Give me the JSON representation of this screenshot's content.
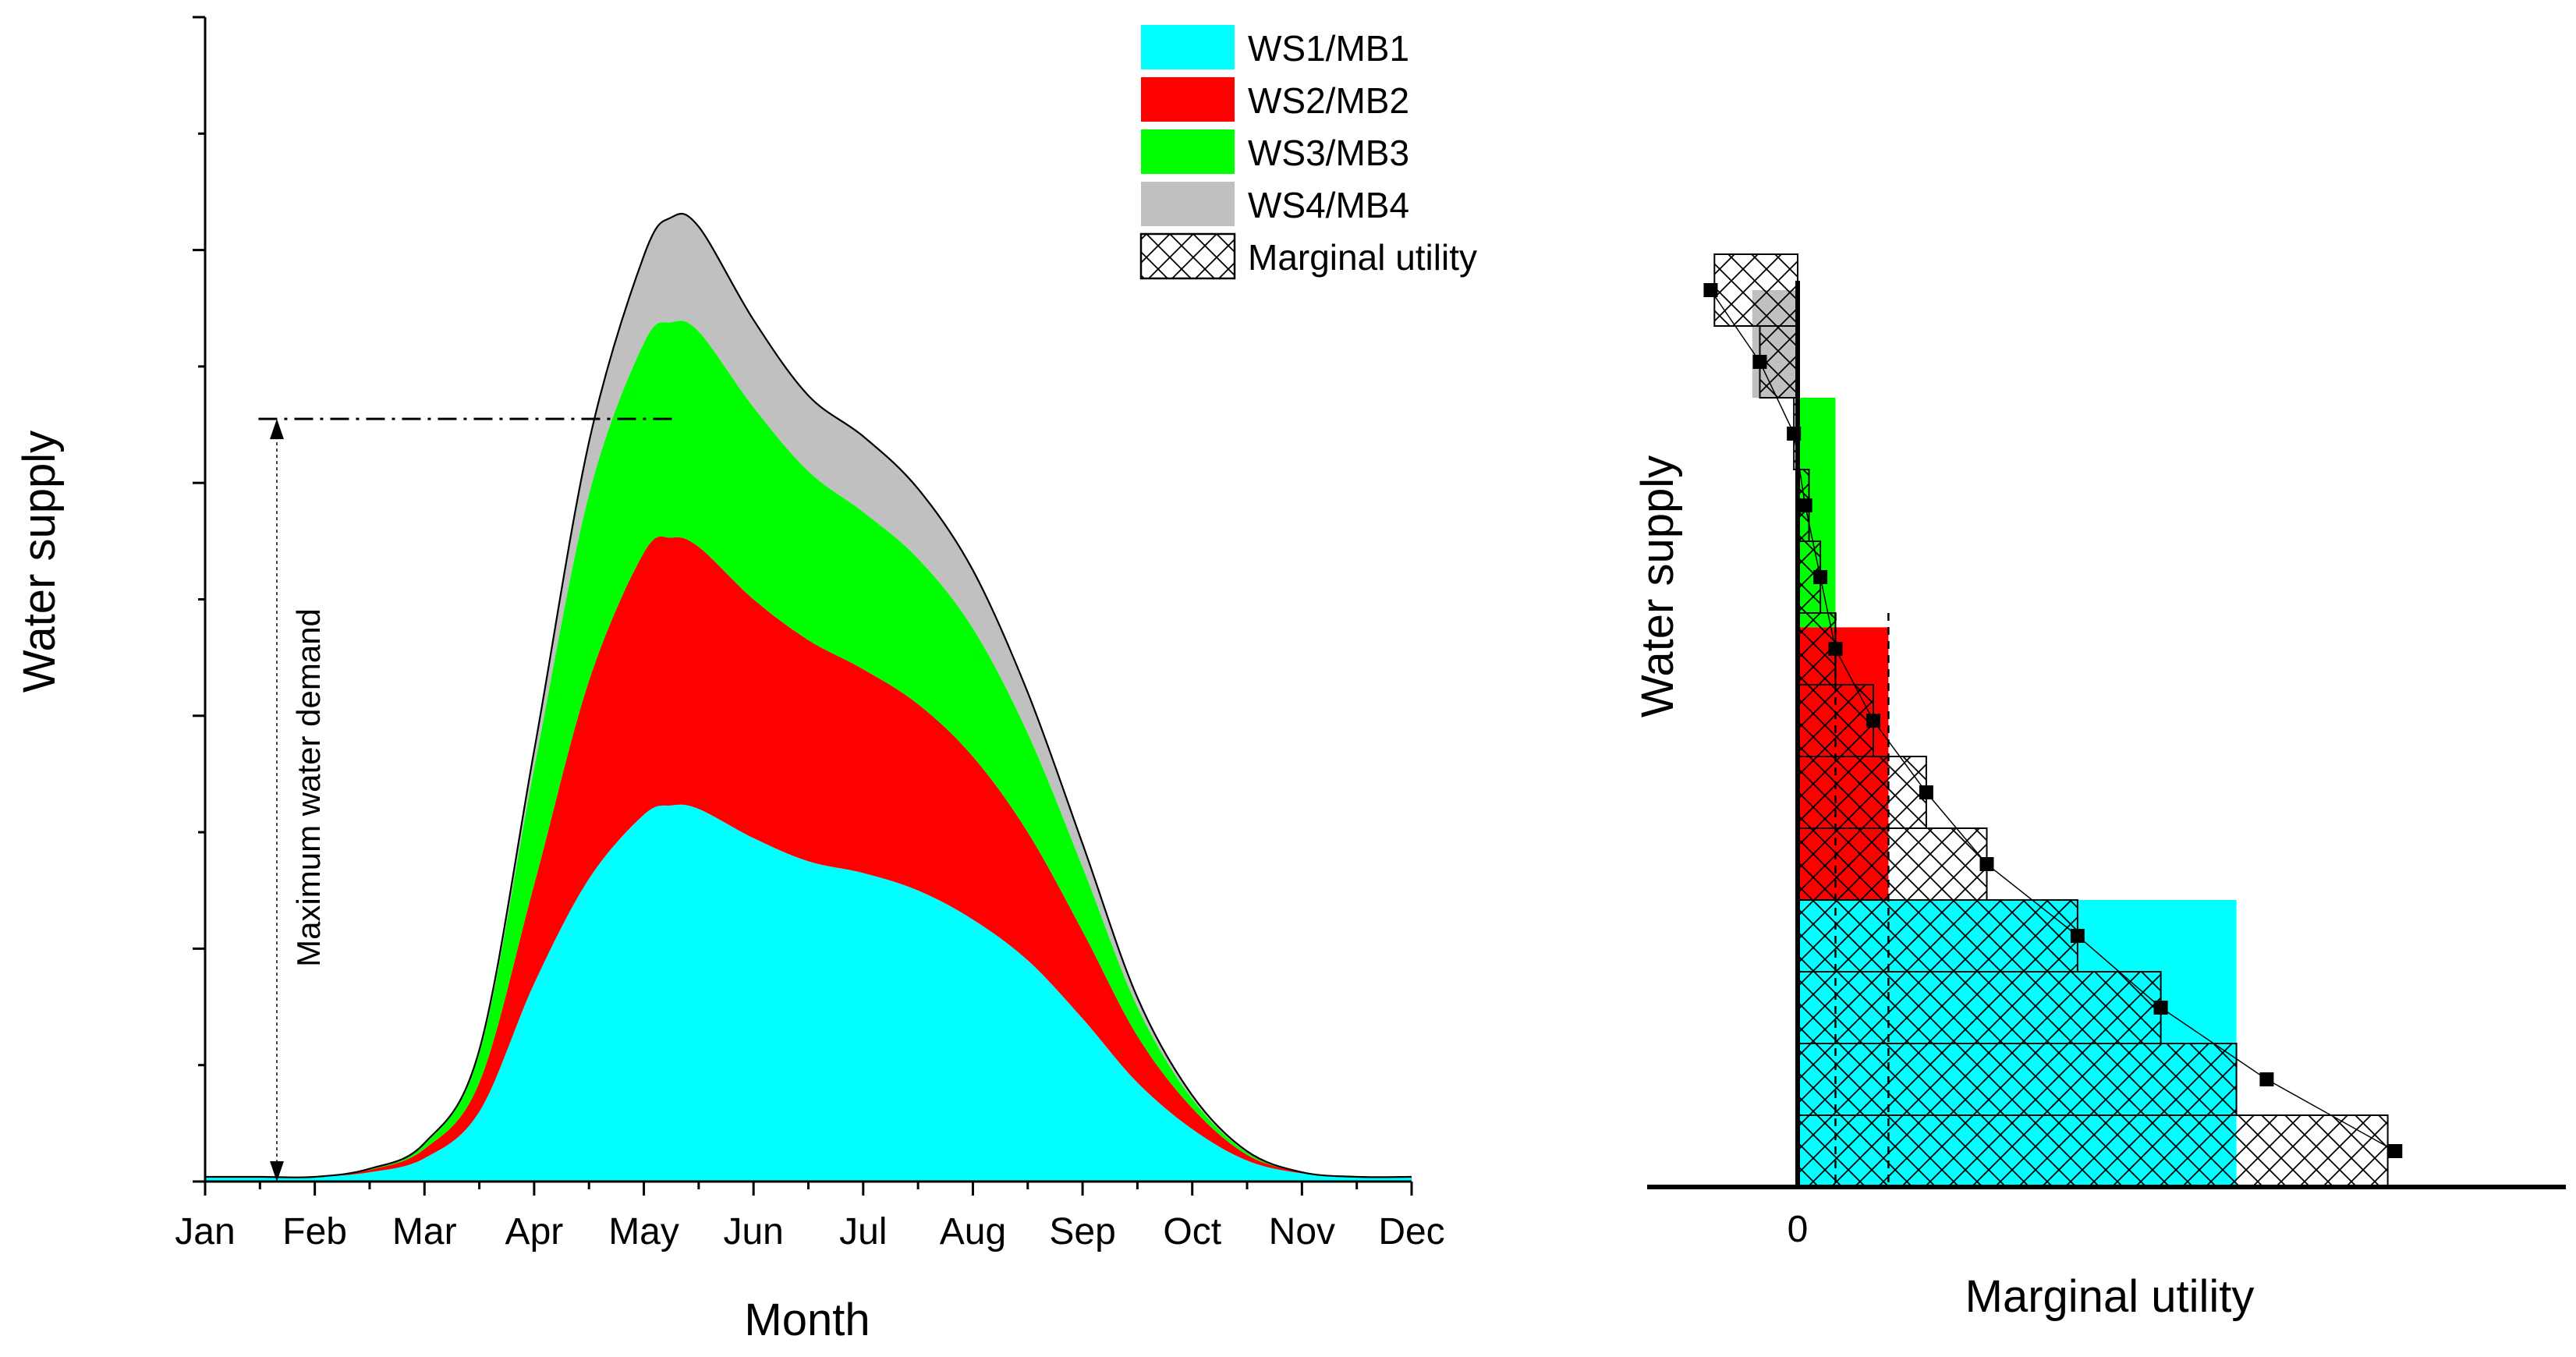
{
  "chart_data": [
    {
      "type": "area",
      "stacked": true,
      "title": "",
      "xlabel": "Month",
      "ylabel": "Water supply",
      "x": [
        0,
        0.5,
        1,
        1.5,
        2,
        2.5,
        3,
        3.5,
        4,
        4.25,
        4.5,
        5,
        5.5,
        6,
        6.5,
        7,
        7.5,
        8,
        8.5,
        9,
        9.5,
        10,
        10.5,
        11
      ],
      "xticks": [
        "Jan",
        "Feb",
        "Mar",
        "Apr",
        "May",
        "Jun",
        "Jul",
        "Aug",
        "Sep",
        "Oct",
        "Nov",
        "Dec"
      ],
      "xlim": [
        0,
        11
      ],
      "ylim": [
        0,
        100
      ],
      "series": [
        {
          "name": "WS1/MB1",
          "color": "#00ffff",
          "values": [
            0.4,
            0.4,
            0.4,
            0.8,
            2.0,
            6.0,
            17.0,
            26.0,
            31.5,
            32.3,
            32.0,
            29.5,
            27.5,
            26.5,
            25.0,
            22.5,
            19.0,
            14.0,
            8.5,
            4.5,
            1.8,
            0.7,
            0.4,
            0.4
          ]
        },
        {
          "name": "WS2/MB2",
          "color": "#ff0000",
          "values": [
            0,
            0,
            0,
            0.2,
            0.8,
            2.5,
            8.5,
            17.0,
            22.5,
            23.0,
            22.5,
            20.5,
            19.0,
            17.5,
            16.0,
            14.0,
            11.0,
            7.5,
            4.0,
            1.8,
            0.5,
            0.1,
            0,
            0
          ]
        },
        {
          "name": "WS3/MB3",
          "color": "#00ff00",
          "values": [
            0,
            0,
            0,
            0.1,
            0.4,
            2.5,
            10.0,
            16.0,
            18.0,
            18.5,
            18.5,
            16.5,
            14.5,
            13.5,
            12.5,
            11.0,
            8.5,
            5.5,
            2.5,
            0.8,
            0.2,
            0,
            0,
            0
          ]
        },
        {
          "name": "WS4/MB4",
          "color": "#c0c0c0",
          "values": [
            0,
            0,
            0,
            0,
            0.1,
            0.3,
            1.5,
            4.5,
            7.5,
            9.0,
            9.0,
            7.5,
            6.5,
            6.5,
            6.0,
            5.0,
            3.5,
            2.0,
            0.8,
            0.3,
            0.1,
            0,
            0,
            0
          ]
        }
      ],
      "annotations": [
        {
          "text": "Maximum water demand",
          "value": 65.5,
          "x_start": 0.7,
          "x_end": 4.3
        }
      ],
      "legend": {
        "position": "top-right",
        "entries": [
          {
            "label": "WS1/MB1",
            "color": "#00ffff",
            "pattern": "solid"
          },
          {
            "label": "WS2/MB2",
            "color": "#ff0000",
            "pattern": "solid"
          },
          {
            "label": "WS3/MB3",
            "color": "#00ff00",
            "pattern": "solid"
          },
          {
            "label": "WS4/MB4",
            "color": "#c0c0c0",
            "pattern": "solid"
          },
          {
            "label": "Marginal utility",
            "color": "#ffffff",
            "pattern": "crosshatch"
          }
        ]
      }
    },
    {
      "type": "bar",
      "orientation": "horizontal",
      "title": "",
      "xlabel": "Marginal utility",
      "ylabel": "Water supply",
      "xticks": [
        "0"
      ],
      "xlim": [
        -1.0,
        8.5
      ],
      "ylim": [
        0,
        16.5
      ],
      "supply_blocks": [
        {
          "name": "WS1/MB1",
          "color": "#00ffff",
          "y_from": 0,
          "y_to": 4,
          "utility": 5.8
        },
        {
          "name": "WS2/MB2",
          "color": "#ff0000",
          "y_from": 4,
          "y_to": 7.8,
          "utility": 1.2
        },
        {
          "name": "WS3/MB3",
          "color": "#00ff00",
          "y_from": 7.8,
          "y_to": 11,
          "utility": 0.5
        },
        {
          "name": "WS4/MB4",
          "color": "#c0c0c0",
          "y_from": 11,
          "y_to": 12.5,
          "utility": -0.6
        }
      ],
      "marginal_utility_steps": [
        {
          "y_from": 0,
          "y_to": 1,
          "utility": 7.8
        },
        {
          "y_from": 1,
          "y_to": 2,
          "utility": 5.8
        },
        {
          "y_from": 2,
          "y_to": 3,
          "utility": 4.8
        },
        {
          "y_from": 3,
          "y_to": 4,
          "utility": 3.7
        },
        {
          "y_from": 4,
          "y_to": 5,
          "utility": 2.5
        },
        {
          "y_from": 5,
          "y_to": 6,
          "utility": 1.7
        },
        {
          "y_from": 6,
          "y_to": 7,
          "utility": 1.0
        },
        {
          "y_from": 7,
          "y_to": 8,
          "utility": 0.5
        },
        {
          "y_from": 8,
          "y_to": 9,
          "utility": 0.3
        },
        {
          "y_from": 9,
          "y_to": 10,
          "utility": 0.15
        },
        {
          "y_from": 10,
          "y_to": 11,
          "utility": -0.05
        },
        {
          "y_from": 11,
          "y_to": 12,
          "utility": -0.5
        },
        {
          "y_from": 12,
          "y_to": 13,
          "utility": -1.1
        }
      ],
      "points": [
        {
          "y": 0.5,
          "utility": 7.9
        },
        {
          "y": 1.5,
          "utility": 6.2
        },
        {
          "y": 2.5,
          "utility": 4.8
        },
        {
          "y": 3.5,
          "utility": 3.7
        },
        {
          "y": 4.5,
          "utility": 2.5
        },
        {
          "y": 5.5,
          "utility": 1.7
        },
        {
          "y": 6.5,
          "utility": 1.0
        },
        {
          "y": 7.5,
          "utility": 0.5
        },
        {
          "y": 8.5,
          "utility": 0.3
        },
        {
          "y": 9.5,
          "utility": 0.1
        },
        {
          "y": 10.5,
          "utility": -0.05
        },
        {
          "y": 11.5,
          "utility": -0.5
        },
        {
          "y": 12.5,
          "utility": -1.15
        }
      ],
      "dashed_markers": [
        0.5,
        1.2
      ]
    }
  ]
}
